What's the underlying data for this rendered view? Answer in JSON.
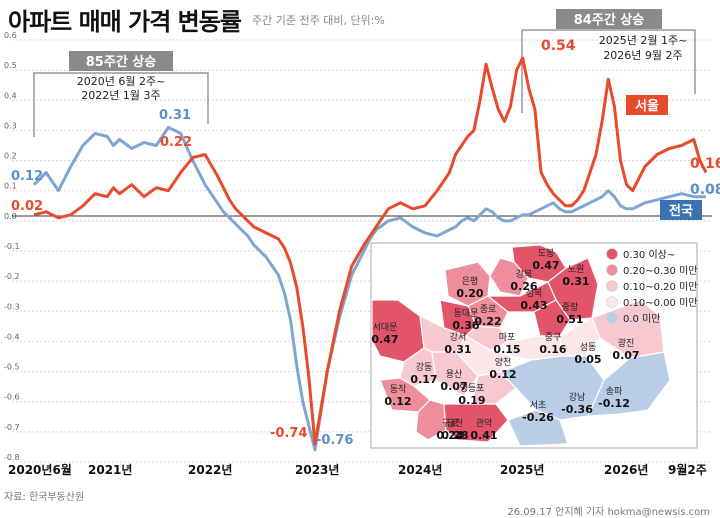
{
  "title": "아파트 매매 가격 변동률",
  "subtitle": "주간 기준 전주 대비, 단위:%",
  "source": "자료: 한국부동산원",
  "credit": "26.09.17 안지혜 기자 hokma@newsis.com",
  "colors": {
    "seoul": "#e84a2c",
    "national": "#7fa5d3",
    "accent_blue": "#3a72b3",
    "box_gray": "#8a8a8a"
  },
  "annotations": {
    "left": {
      "label": "85주간 상승",
      "line1": "2020년 6월 2주~",
      "line2": "2022년 1월 3주"
    },
    "right": {
      "label": "84주간 상승",
      "line1": "2025년 2월 1주~",
      "line2": "2026년 9월 2주"
    }
  },
  "series_labels": {
    "seoul": "서울",
    "national": "전국"
  },
  "chart_data": {
    "type": "line",
    "ylim": [
      -0.8,
      0.6
    ],
    "yticks": [
      "0.6",
      "0.5",
      "0.4",
      "0.3",
      "0.2",
      "0.1",
      "0.0",
      "-0.1",
      "-0.2",
      "-0.3",
      "-0.4",
      "-0.5",
      "-0.6",
      "-0.7",
      "-0.8"
    ],
    "xticks": [
      "2020년6월",
      "2021년",
      "2022년",
      "2023년",
      "2024년",
      "2025년",
      "2026년",
      "9월2주"
    ],
    "data_labels": [
      "0.12",
      "0.02",
      "0.31",
      "0.22",
      "-0.74",
      "-0.76",
      "0.54",
      "0.16",
      "0.08"
    ],
    "series": [
      {
        "name": "서울",
        "color": "#e84a2c",
        "x": [
          0,
          10,
          20,
          30,
          40,
          50,
          60,
          65,
          70,
          80,
          90,
          100,
          110,
          120,
          130,
          140,
          150,
          155,
          160,
          165,
          170,
          175,
          180,
          190,
          200,
          205,
          210,
          215,
          220,
          225,
          230,
          240,
          250,
          260,
          270,
          275,
          280,
          290,
          300,
          310,
          320,
          330,
          340,
          345,
          350,
          355,
          360,
          365,
          370,
          375,
          380,
          385,
          390,
          395,
          400,
          405,
          410,
          415,
          420,
          425,
          430,
          435,
          440,
          445,
          450,
          455,
          460,
          465,
          470,
          475,
          480,
          485,
          490,
          500,
          510,
          520,
          530,
          540,
          545,
          550
        ],
        "y": [
          0.02,
          0.03,
          0.01,
          0.02,
          0.05,
          0.09,
          0.08,
          0.11,
          0.09,
          0.12,
          0.08,
          0.11,
          0.1,
          0.16,
          0.21,
          0.22,
          0.15,
          0.11,
          0.07,
          0.04,
          0.02,
          0.0,
          -0.02,
          -0.04,
          -0.06,
          -0.09,
          -0.14,
          -0.22,
          -0.35,
          -0.52,
          -0.74,
          -0.5,
          -0.3,
          -0.15,
          -0.08,
          -0.05,
          -0.02,
          0.04,
          0.06,
          0.04,
          0.05,
          0.1,
          0.16,
          0.22,
          0.25,
          0.28,
          0.3,
          0.4,
          0.52,
          0.44,
          0.37,
          0.33,
          0.38,
          0.5,
          0.54,
          0.44,
          0.37,
          0.16,
          0.12,
          0.09,
          0.07,
          0.05,
          0.05,
          0.07,
          0.1,
          0.16,
          0.22,
          0.33,
          0.47,
          0.38,
          0.2,
          0.12,
          0.1,
          0.18,
          0.22,
          0.24,
          0.25,
          0.27,
          0.2,
          0.16
        ]
      },
      {
        "name": "전국",
        "color": "#7fa5d3",
        "x": [
          0,
          10,
          20,
          30,
          40,
          50,
          60,
          65,
          70,
          80,
          90,
          100,
          110,
          120,
          130,
          140,
          150,
          155,
          160,
          165,
          170,
          175,
          180,
          190,
          200,
          205,
          210,
          215,
          220,
          225,
          230,
          240,
          250,
          260,
          270,
          275,
          280,
          290,
          300,
          310,
          320,
          330,
          340,
          345,
          350,
          355,
          360,
          365,
          370,
          375,
          380,
          385,
          390,
          395,
          400,
          405,
          410,
          415,
          420,
          425,
          430,
          435,
          440,
          445,
          450,
          455,
          460,
          465,
          470,
          475,
          480,
          485,
          490,
          500,
          510,
          520,
          530,
          540,
          545,
          550
        ],
        "y": [
          0.12,
          0.16,
          0.1,
          0.18,
          0.25,
          0.29,
          0.28,
          0.25,
          0.27,
          0.24,
          0.26,
          0.25,
          0.31,
          0.29,
          0.2,
          0.12,
          0.06,
          0.03,
          0.01,
          -0.01,
          -0.03,
          -0.05,
          -0.08,
          -0.12,
          -0.18,
          -0.24,
          -0.33,
          -0.48,
          -0.6,
          -0.68,
          -0.76,
          -0.5,
          -0.32,
          -0.18,
          -0.1,
          -0.06,
          -0.03,
          0.0,
          0.01,
          -0.02,
          -0.04,
          -0.05,
          -0.03,
          -0.02,
          0.0,
          0.01,
          0.0,
          0.02,
          0.04,
          0.03,
          0.01,
          0.0,
          0.0,
          0.01,
          0.02,
          0.02,
          0.03,
          0.04,
          0.05,
          0.06,
          0.04,
          0.03,
          0.03,
          0.04,
          0.05,
          0.06,
          0.07,
          0.08,
          0.1,
          0.08,
          0.05,
          0.04,
          0.04,
          0.06,
          0.07,
          0.08,
          0.09,
          0.08,
          0.08,
          0.08
        ]
      }
    ]
  },
  "map": {
    "legend": [
      {
        "label": "0.30 이상~",
        "color": "#e2546a"
      },
      {
        "label": "0.20~0.30 미만",
        "color": "#ee8e9c"
      },
      {
        "label": "0.10~0.20 미만",
        "color": "#f6c8cf"
      },
      {
        "label": "0.10~0.00 미만",
        "color": "#fbe6e8"
      },
      {
        "label": "0.0 미만",
        "color": "#b9cde6"
      }
    ],
    "districts": [
      {
        "name": "도봉",
        "value": "0.47"
      },
      {
        "name": "노원",
        "value": "0.31"
      },
      {
        "name": "강북",
        "value": "0.26"
      },
      {
        "name": "은평",
        "value": "0.20"
      },
      {
        "name": "성북",
        "value": "0.43"
      },
      {
        "name": "중랑",
        "value": "0.51"
      },
      {
        "name": "종로",
        "value": "0.22"
      },
      {
        "name": "동대문",
        "value": "0.36"
      },
      {
        "name": "서대문",
        "value": "0.47"
      },
      {
        "name": "강서",
        "value": "0.31"
      },
      {
        "name": "마포",
        "value": "0.15"
      },
      {
        "name": "중구",
        "value": "0.16"
      },
      {
        "name": "성동",
        "value": "0.05"
      },
      {
        "name": "광진",
        "value": "0.07"
      },
      {
        "name": "강동",
        "value": "0.17"
      },
      {
        "name": "양천",
        "value": "0.12"
      },
      {
        "name": "용산",
        "value": "0.07"
      },
      {
        "name": "영등포",
        "value": "0.19"
      },
      {
        "name": "동작",
        "value": "0.12"
      },
      {
        "name": "구로",
        "value": "0.24"
      },
      {
        "name": "송파",
        "value": "-0.12"
      },
      {
        "name": "강남",
        "value": "-0.36"
      },
      {
        "name": "서초",
        "value": "-0.26"
      },
      {
        "name": "금천",
        "value": "0.28"
      },
      {
        "name": "관악",
        "value": "0.41"
      }
    ]
  }
}
